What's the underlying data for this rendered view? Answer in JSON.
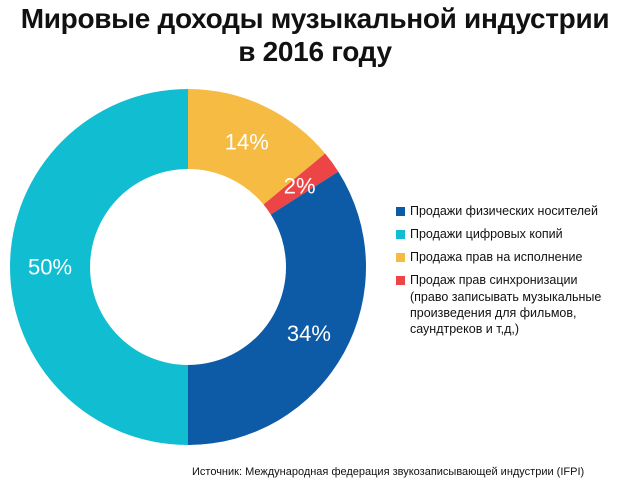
{
  "chart_data": {
    "type": "pie",
    "donut": true,
    "title_line1": "Мировые доходы музыкальной индустрии",
    "title_line2": "в 2016 году",
    "slices": [
      {
        "name": "Продажи физических носителей",
        "value": 34,
        "label": "34%",
        "color": "#0d5aa7"
      },
      {
        "name": "Продажи цифровых копий",
        "value": 50,
        "label": "50%",
        "color": "#11bdd1"
      },
      {
        "name": "Продажа прав на исполнение",
        "value": 14,
        "label": "14%",
        "color": "#f5bb42"
      },
      {
        "name": "Продаж прав синхронизации",
        "value": 2,
        "label": "2%",
        "color": "#ed4545"
      }
    ],
    "legend_note": "(право записывать музыкальные произведения для фильмов, саундтреков и т,д,)",
    "legend_position": "right",
    "source": "Источник: Международная федерация звукозаписывающей индустрии (IFPI)"
  }
}
